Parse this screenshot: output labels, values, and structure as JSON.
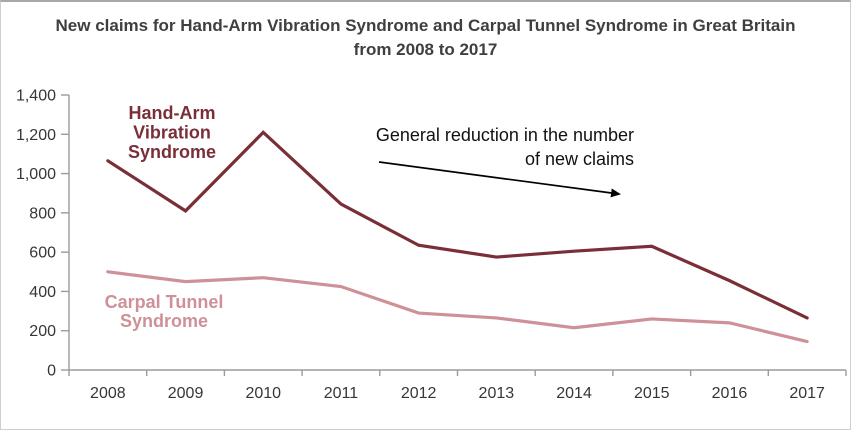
{
  "title": {
    "line1": "New claims for Hand-Arm Vibration Syndrome and Carpal Tunnel Syndrome in Great Britain",
    "line2": "from 2008 to 2017"
  },
  "chart_data": {
    "type": "line",
    "categories": [
      "2008",
      "2009",
      "2010",
      "2011",
      "2012",
      "2013",
      "2014",
      "2015",
      "2016",
      "2017"
    ],
    "series": [
      {
        "id": "havs",
        "name": "Hand-Arm Vibration Syndrome",
        "label_lines": [
          "Hand-Arm",
          "Vibration",
          "Syndrome"
        ],
        "color": "#7A2F38",
        "values": [
          1065,
          810,
          1210,
          845,
          635,
          575,
          605,
          630,
          455,
          265
        ]
      },
      {
        "id": "cts",
        "name": "Carpal Tunnel Syndrome",
        "label_lines": [
          "Carpal Tunnel",
          "Syndrome"
        ],
        "color": "#CD9197",
        "values": [
          500,
          450,
          470,
          425,
          290,
          265,
          215,
          260,
          240,
          145
        ]
      }
    ],
    "xlabel": "",
    "ylabel": "",
    "ylim": [
      0,
      1400
    ],
    "ytick_interval": 200,
    "ytick_labels": [
      "0",
      "200",
      "400",
      "600",
      "800",
      "1,000",
      "1,200",
      "1,400"
    ],
    "grid": false,
    "legend_position": "direct-series-labels",
    "annotation": {
      "text_lines": [
        "General reduction in the number",
        "of new claims"
      ],
      "has_arrow": true
    }
  },
  "colors": {
    "title_text": "#3F3F3F",
    "axis_line": "#9B9B9B",
    "tick_label": "#363636",
    "annotation_text": "#111111",
    "arrow": "#000000",
    "havs_line": "#7A2F38",
    "cts_line": "#CD9197",
    "background": "#FFFFFF",
    "frame_border": "#CFCFCF"
  }
}
